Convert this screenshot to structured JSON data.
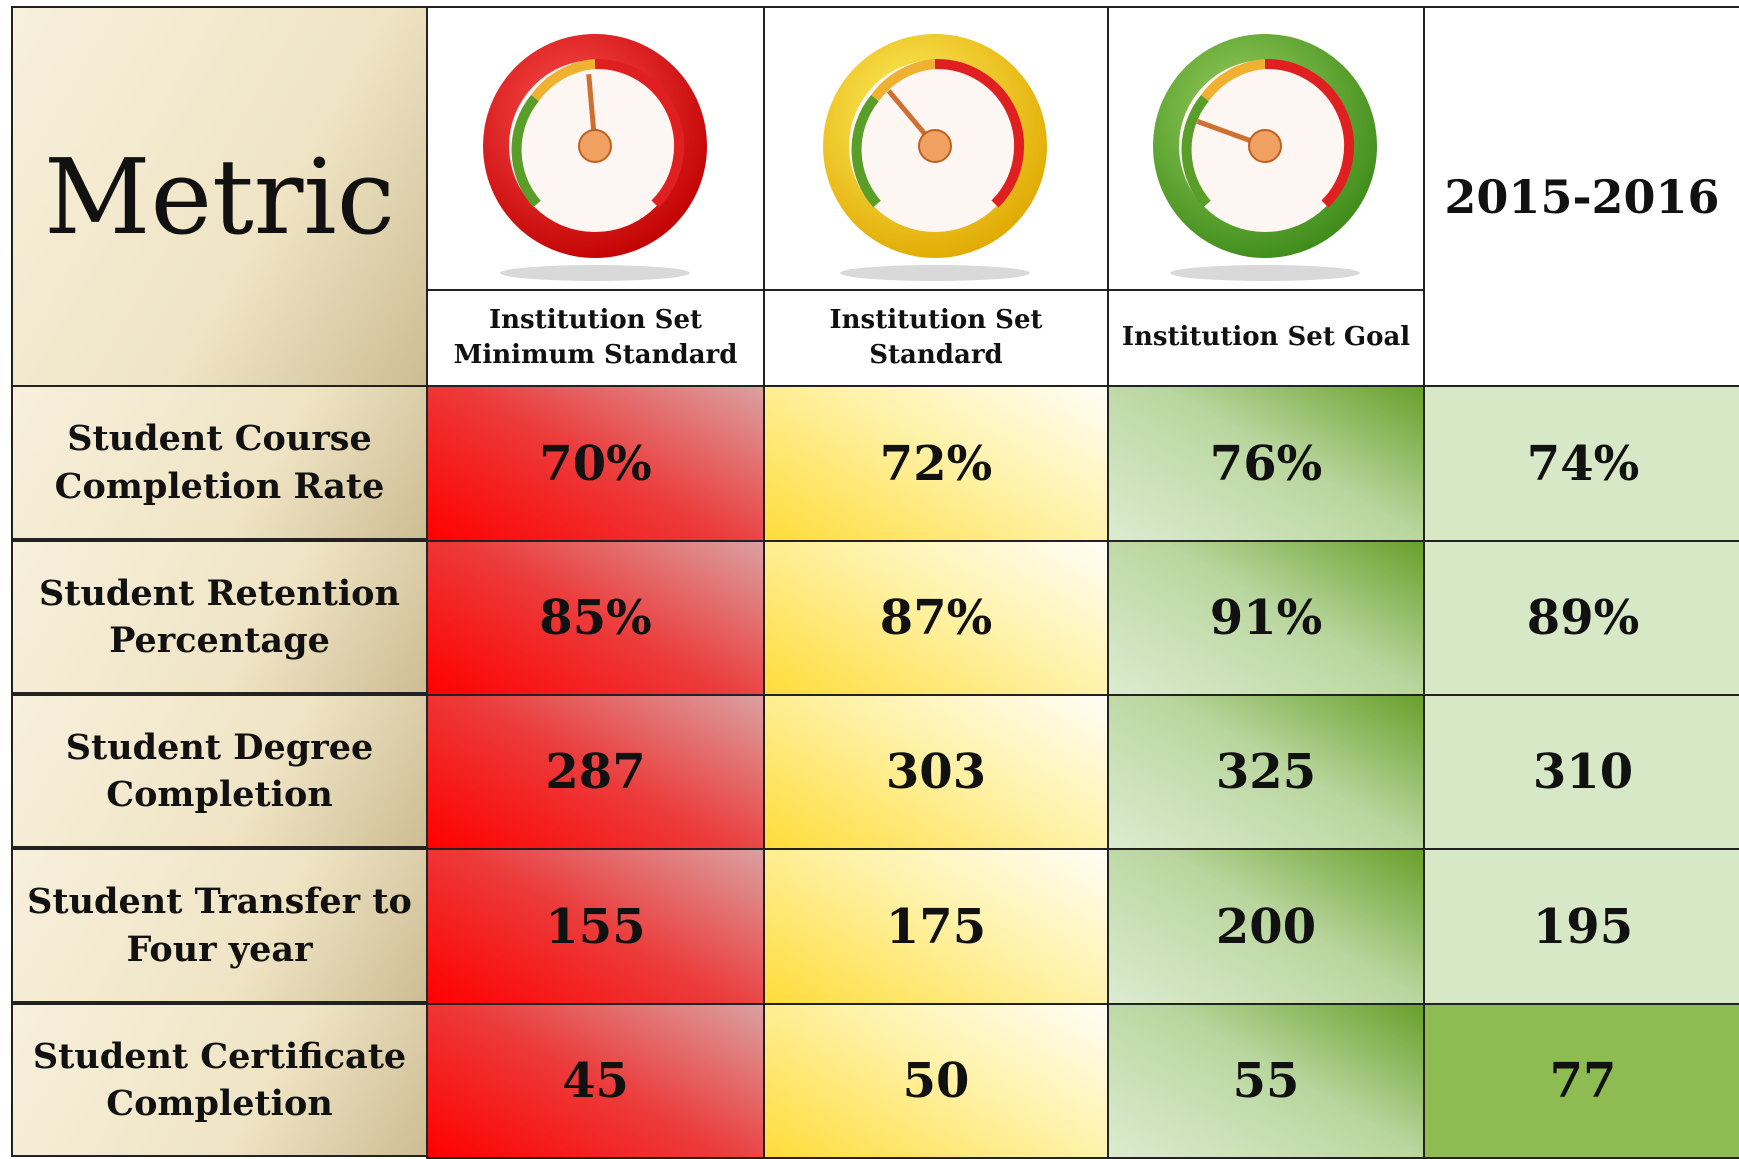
{
  "header": {
    "metric": "Metric",
    "columns": [
      "Institution Set Minimum Standard",
      "Institution Set Standard",
      "Institution Set Goal"
    ],
    "year": "2015-2016"
  },
  "rows": [
    {
      "label": "Student Course Completion Rate",
      "values": [
        "70%",
        "72%",
        "76%",
        "74%"
      ]
    },
    {
      "label": "Student Retention Percentage",
      "values": [
        "85%",
        "87%",
        "91%",
        "89%"
      ]
    },
    {
      "label": "Student Degree Completion",
      "values": [
        "287",
        "303",
        "325",
        "310"
      ]
    },
    {
      "label": "Student Transfer to Four year",
      "values": [
        "155",
        "175",
        "200",
        "195"
      ]
    },
    {
      "label": "Student Certificate Completion",
      "values": [
        "45",
        "50",
        "55",
        "77"
      ]
    }
  ]
}
